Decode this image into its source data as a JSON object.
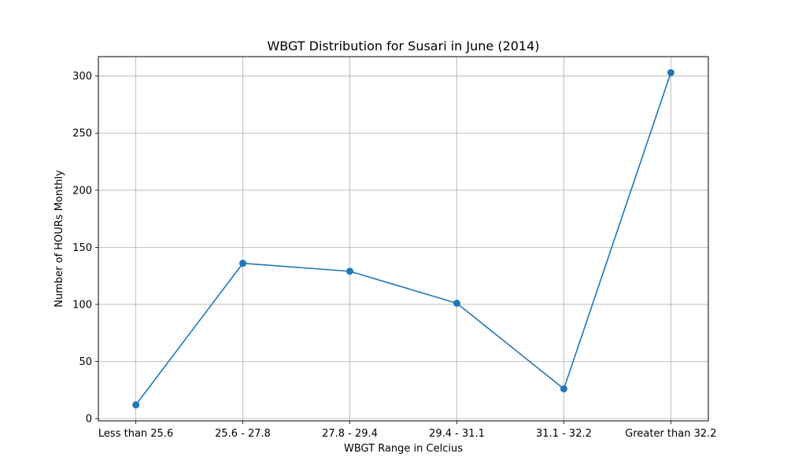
{
  "chart_data": {
    "type": "line",
    "title": "WBGT Distribution for Susari in June (2014)",
    "xlabel": "WBGT Range in Celcius",
    "ylabel": "Number of HOURs Monthly",
    "categories": [
      "Less than 25.6",
      "25.6 - 27.8",
      "27.8 - 29.4",
      "29.4 - 31.1",
      "31.1 - 32.2",
      "Greater than 32.2"
    ],
    "series": [
      {
        "values": [
          12,
          136,
          129,
          101,
          26,
          303
        ],
        "color": "#1f77b4",
        "marker": "circle"
      }
    ],
    "ylim": [
      -2,
      317
    ],
    "yticks": [
      0,
      50,
      100,
      150,
      200,
      250,
      300
    ],
    "grid": true,
    "legend": "none"
  }
}
